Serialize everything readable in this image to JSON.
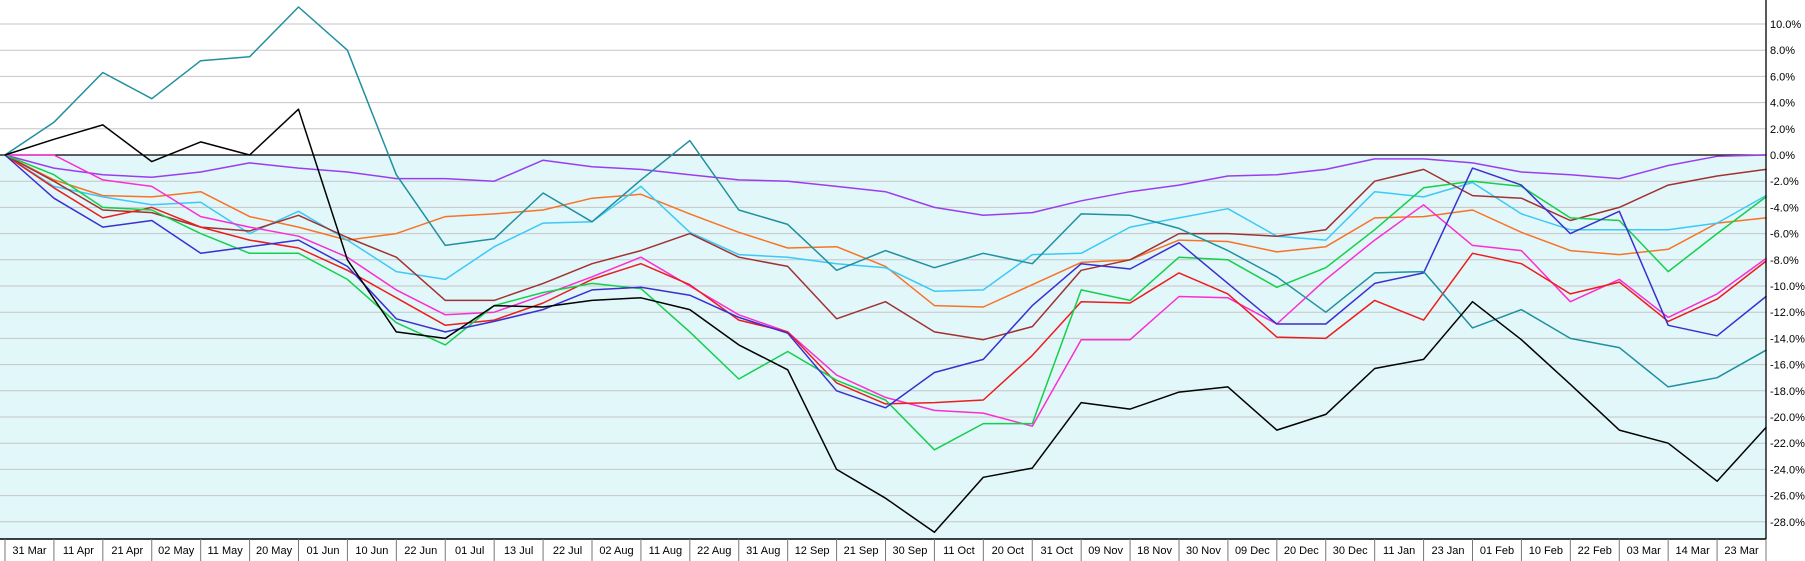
{
  "chart_data": {
    "type": "line",
    "title": "",
    "xlabel": "",
    "ylabel": "",
    "grid": true,
    "legend_position": "none",
    "background_above_zero": "#ffffff",
    "background_below_zero": "#e1f7fa",
    "gridline_color": "#c6c6c6",
    "zero_line_color": "#000000",
    "axis_color": "#000000",
    "y_axis": {
      "min": -29.3,
      "max": 11.8,
      "tick_step": 2,
      "tick_labels": [
        "10.0%",
        "8.0%",
        "6.0%",
        "4.0%",
        "2.0%",
        "0.0%",
        "-2.0%",
        "-4.0%",
        "-6.0%",
        "-8.0%",
        "-10.0%",
        "-12.0%",
        "-14.0%",
        "-16.0%",
        "-18.0%",
        "-20.0%",
        "-22.0%",
        "-24.0%",
        "-26.0%",
        "-28.0%"
      ],
      "tick_values": [
        10,
        8,
        6,
        4,
        2,
        0,
        -2,
        -4,
        -6,
        -8,
        -10,
        -12,
        -14,
        -16,
        -18,
        -20,
        -22,
        -24,
        -26,
        -28
      ]
    },
    "x_labels": [
      "31 Mar",
      "11 Apr",
      "21 Apr",
      "02 May",
      "11 May",
      "20 May",
      "01 Jun",
      "10 Jun",
      "22 Jun",
      "01 Jul",
      "13 Jul",
      "22 Jul",
      "02 Aug",
      "11 Aug",
      "22 Aug",
      "31 Aug",
      "12 Sep",
      "21 Sep",
      "30 Sep",
      "11 Oct",
      "20 Oct",
      "31 Oct",
      "09 Nov",
      "18 Nov",
      "30 Nov",
      "09 Dec",
      "20 Dec",
      "30 Dec",
      "11 Jan",
      "23 Jan",
      "01 Feb",
      "10 Feb",
      "22 Feb",
      "03 Mar",
      "14 Mar",
      "23 Mar"
    ],
    "sample_note": "Each series has 37 sampled values (%): start of chart, one per x label thereafter, and the right edge of the plot.",
    "series": [
      {
        "name": "purple",
        "color": "#9a3df0",
        "values": [
          0,
          -1.0,
          -1.5,
          -1.7,
          -1.3,
          -0.6,
          -1.0,
          -1.3,
          -1.8,
          -1.8,
          -2.0,
          -0.4,
          -0.9,
          -1.1,
          -1.5,
          -1.9,
          -2.0,
          -2.4,
          -2.8,
          -4.0,
          -4.6,
          -4.4,
          -3.5,
          -2.8,
          -2.3,
          -1.6,
          -1.5,
          -1.1,
          -0.3,
          -0.3,
          -0.6,
          -1.3,
          -1.5,
          -1.8,
          -0.8,
          -0.1,
          0.0
        ]
      },
      {
        "name": "orange",
        "color": "#f97326",
        "values": [
          0,
          -1.9,
          -3.1,
          -3.2,
          -2.8,
          -4.7,
          -5.5,
          -6.5,
          -6.0,
          -4.7,
          -4.5,
          -4.2,
          -3.3,
          -3.0,
          -4.5,
          -5.9,
          -7.1,
          -7.0,
          -8.5,
          -11.5,
          -11.6,
          -9.9,
          -8.2,
          -8.0,
          -6.5,
          -6.6,
          -7.4,
          -7.0,
          -4.8,
          -4.7,
          -4.2,
          -5.9,
          -7.3,
          -7.6,
          -7.2,
          -5.2,
          -4.8
        ]
      },
      {
        "name": "cyan",
        "color": "#3cc9f7",
        "values": [
          0,
          -2.4,
          -3.2,
          -3.8,
          -3.6,
          -6.0,
          -4.3,
          -6.5,
          -8.9,
          -9.5,
          -7.0,
          -5.2,
          -5.1,
          -2.4,
          -5.9,
          -7.6,
          -7.8,
          -8.3,
          -8.6,
          -10.4,
          -10.3,
          -7.6,
          -7.5,
          -5.5,
          -4.8,
          -4.1,
          -6.2,
          -6.5,
          -2.8,
          -3.2,
          -2.1,
          -4.5,
          -5.7,
          -5.7,
          -5.7,
          -5.2,
          -3.1
        ]
      },
      {
        "name": "dark-red",
        "color": "#a03232",
        "values": [
          0,
          -2.0,
          -4.2,
          -4.4,
          -5.5,
          -5.8,
          -4.6,
          -6.3,
          -7.8,
          -11.1,
          -11.1,
          -9.8,
          -8.3,
          -7.3,
          -6.0,
          -7.8,
          -8.5,
          -12.5,
          -11.2,
          -13.5,
          -14.1,
          -13.1,
          -8.8,
          -8.0,
          -6.0,
          -6.0,
          -6.2,
          -5.7,
          -2.0,
          -1.1,
          -3.1,
          -3.3,
          -5.0,
          -4.0,
          -2.3,
          -1.6,
          -1.1
        ]
      },
      {
        "name": "magenta",
        "color": "#fb2ed2",
        "values": [
          0,
          0.0,
          -1.9,
          -2.4,
          -4.7,
          -5.5,
          -6.2,
          -7.8,
          -10.3,
          -12.2,
          -12.0,
          -10.7,
          -9.3,
          -7.8,
          -10.0,
          -12.2,
          -13.5,
          -16.8,
          -18.5,
          -19.5,
          -19.7,
          -20.7,
          -14.1,
          -14.1,
          -10.8,
          -10.9,
          -12.9,
          -9.5,
          -6.5,
          -3.8,
          -6.9,
          -7.3,
          -11.2,
          -9.5,
          -12.4,
          -10.6,
          -7.9
        ]
      },
      {
        "name": "red",
        "color": "#ee1c1c",
        "values": [
          0,
          -2.5,
          -4.8,
          -4.0,
          -5.5,
          -6.5,
          -7.1,
          -8.8,
          -10.9,
          -13.0,
          -12.6,
          -11.3,
          -9.5,
          -8.3,
          -9.9,
          -12.6,
          -13.5,
          -17.4,
          -19.0,
          -18.9,
          -18.7,
          -15.3,
          -11.2,
          -11.3,
          -9.0,
          -10.6,
          -13.9,
          -14.0,
          -11.1,
          -12.6,
          -7.5,
          -8.3,
          -10.6,
          -9.7,
          -12.7,
          -11.0,
          -8.1
        ]
      },
      {
        "name": "green",
        "color": "#15d04a",
        "values": [
          0,
          -1.5,
          -4.0,
          -4.2,
          -6.0,
          -7.5,
          -7.5,
          -9.5,
          -12.8,
          -14.5,
          -11.5,
          -10.5,
          -9.8,
          -10.2,
          -13.5,
          -17.1,
          -15.0,
          -17.2,
          -18.7,
          -22.5,
          -20.5,
          -20.5,
          -10.3,
          -11.1,
          -7.8,
          -8.0,
          -10.1,
          -8.6,
          -5.7,
          -2.5,
          -2.0,
          -2.4,
          -4.8,
          -5.0,
          -8.9,
          -6.0,
          -3.2
        ]
      },
      {
        "name": "blue",
        "color": "#3a2fd0",
        "values": [
          0,
          -3.3,
          -5.5,
          -5.0,
          -7.5,
          -7.0,
          -6.5,
          -8.5,
          -12.5,
          -13.5,
          -12.7,
          -11.8,
          -10.3,
          -10.1,
          -10.7,
          -12.4,
          -13.6,
          -18.0,
          -19.3,
          -16.6,
          -15.6,
          -11.5,
          -8.3,
          -8.7,
          -6.7,
          -9.8,
          -12.9,
          -12.9,
          -9.8,
          -9.0,
          -1.0,
          -2.3,
          -6.0,
          -4.3,
          -13.0,
          -13.8,
          -10.8
        ]
      },
      {
        "name": "teal",
        "color": "#20909f",
        "values": [
          0,
          2.5,
          6.3,
          4.3,
          7.2,
          7.5,
          11.3,
          8.0,
          -1.5,
          -6.9,
          -6.4,
          -2.9,
          -5.1,
          -1.9,
          1.1,
          -4.2,
          -5.3,
          -8.8,
          -7.3,
          -8.6,
          -7.5,
          -8.3,
          -4.5,
          -4.6,
          -5.6,
          -7.3,
          -9.3,
          -12.0,
          -9.0,
          -8.9,
          -13.2,
          -11.8,
          -14.0,
          -14.7,
          -17.7,
          -17.0,
          -14.9
        ]
      },
      {
        "name": "black",
        "color": "#000000",
        "values": [
          0,
          1.2,
          2.3,
          -0.5,
          1.0,
          0.0,
          3.5,
          -8.0,
          -13.5,
          -14.0,
          -11.5,
          -11.6,
          -11.1,
          -10.9,
          -11.8,
          -14.5,
          -16.4,
          -24.0,
          -26.2,
          -28.8,
          -24.6,
          -23.9,
          -18.9,
          -19.4,
          -18.1,
          -17.7,
          -21.0,
          -19.8,
          -16.3,
          -15.6,
          -11.2,
          -14.1,
          -17.5,
          -21.0,
          -22.0,
          -24.9,
          -20.8
        ]
      }
    ]
  }
}
